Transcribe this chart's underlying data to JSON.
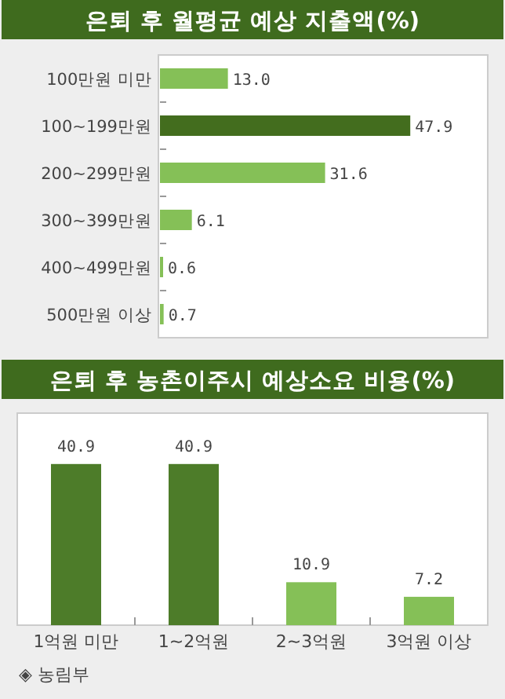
{
  "chart_data": [
    {
      "type": "bar",
      "orientation": "horizontal",
      "title": "은퇴 후 월평균 예상 지출액(%)",
      "categories": [
        "100만원 미만",
        "100~199만원",
        "200~299만원",
        "300~399만원",
        "400~499만원",
        "500만원 이상"
      ],
      "values": [
        13.0,
        47.9,
        31.6,
        6.1,
        0.6,
        0.7
      ],
      "colors": [
        "#85c057",
        "#436d1e",
        "#85c057",
        "#85c057",
        "#85c057",
        "#85c057"
      ],
      "value_labels": [
        "13.0",
        "47.9",
        "31.6",
        "6.1",
        "0.6",
        "0.7"
      ]
    },
    {
      "type": "bar",
      "title": "은퇴 후 농촌이주시 예상소요 비용(%)",
      "categories": [
        "1억원 미만",
        "1~2억원",
        "2~3억원",
        "3억원 이상"
      ],
      "values": [
        40.9,
        40.9,
        10.9,
        7.2
      ],
      "colors": [
        "#4d7c29",
        "#4d7c29",
        "#85c057",
        "#85c057"
      ],
      "value_labels": [
        "40.9",
        "40.9",
        "10.9",
        "7.2"
      ],
      "annotations": [
        "◈ 농림부"
      ]
    }
  ]
}
